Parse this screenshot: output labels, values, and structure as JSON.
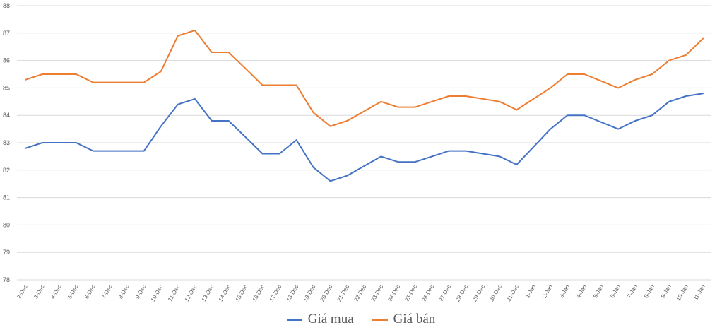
{
  "chart_data": {
    "type": "line",
    "title": "",
    "xlabel": "",
    "ylabel": "",
    "ylim": [
      78,
      88
    ],
    "yticks": [
      78,
      79,
      80,
      81,
      82,
      83,
      84,
      85,
      86,
      87,
      88
    ],
    "grid": true,
    "legend_position": "bottom",
    "categories": [
      "2-Dec",
      "3-Dec",
      "4-Dec",
      "5-Dec",
      "6-Dec",
      "7-Dec",
      "8-Dec",
      "9-Dec",
      "10-Dec",
      "11-Dec",
      "12-Dec",
      "13-Dec",
      "14-Dec",
      "15-Dec",
      "16-Dec",
      "17-Dec",
      "18-Dec",
      "19-Dec",
      "20-Dec",
      "21-Dec",
      "22-Dec",
      "23-Dec",
      "24-Dec",
      "25-Dec",
      "26-Dec",
      "27-Dec",
      "28-Dec",
      "29-Dec",
      "30-Dec",
      "31-Dec",
      "1-Jan",
      "2-Jan",
      "3-Jan",
      "4-Jan",
      "5-Jan",
      "6-Jan",
      "7-Jan",
      "8-Jan",
      "9-Jan",
      "10-Jan",
      "11-Jan"
    ],
    "series": [
      {
        "name": "Giá mua",
        "color": "#4472C4",
        "values": [
          82.8,
          83.0,
          83.0,
          83.0,
          82.7,
          82.7,
          82.7,
          82.7,
          83.6,
          84.4,
          84.6,
          83.8,
          83.8,
          83.2,
          82.6,
          82.6,
          83.1,
          82.1,
          81.6,
          81.8,
          82.15,
          82.5,
          82.3,
          82.3,
          82.5,
          82.7,
          82.7,
          82.6,
          82.5,
          82.2,
          82.85,
          83.5,
          84.0,
          84.0,
          83.75,
          83.5,
          83.8,
          84.0,
          84.5,
          84.7,
          84.8
        ]
      },
      {
        "name": "Giá bán",
        "color": "#ED7D31",
        "values": [
          85.3,
          85.5,
          85.5,
          85.5,
          85.2,
          85.2,
          85.2,
          85.2,
          85.6,
          86.9,
          87.1,
          86.3,
          86.3,
          85.7,
          85.1,
          85.1,
          85.1,
          84.1,
          83.6,
          83.8,
          84.15,
          84.5,
          84.3,
          84.3,
          84.5,
          84.7,
          84.7,
          84.6,
          84.5,
          84.2,
          84.6,
          85.0,
          85.5,
          85.5,
          85.25,
          85.0,
          85.3,
          85.5,
          86.0,
          86.2,
          86.8
        ]
      }
    ]
  }
}
